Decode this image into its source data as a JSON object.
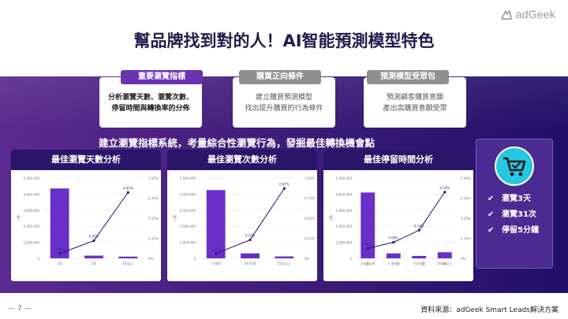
{
  "logo": {
    "text": "adGeek"
  },
  "title": "幫品牌找到對的人！AI智能預測模型特色",
  "cards": [
    {
      "tag": "重要瀏覽指標",
      "lines": [
        "分析瀏覽天數、瀏覽次數、",
        "停留時間與轉換率的分佈"
      ]
    },
    {
      "tag": "購買正向條件",
      "lines": [
        "建立購買預測模型",
        "找出提升購買的行為條件"
      ]
    },
    {
      "tag": "預測模型受眾包",
      "lines": [
        "預測顧客購買意願",
        "產出高購買意願受眾"
      ]
    }
  ],
  "subtitle": "建立瀏覽指標系統，考量綜合性瀏覽行為，發掘最佳轉換機會點",
  "chart_data": [
    {
      "type": "bar",
      "title": "最佳瀏覽天數分析",
      "ylabel": "人數",
      "categories": [
        "1天",
        "2天",
        "3天以上"
      ],
      "y_ticks": [
        "0",
        "1,000,000",
        "2,000,000",
        "3,000,000",
        "4,000,000",
        "5,000,000"
      ],
      "y2_ticks": [
        "0%",
        "0.25%",
        "0.50%",
        "0.75%",
        "1.00%"
      ],
      "ylim": [
        0,
        5000000
      ],
      "y2lim": [
        0,
        1.0
      ],
      "series": [
        {
          "values": [
            4350000,
            170000,
            110000
          ]
        },
        {
          "type": "line",
          "values": [
            0.06,
            0.22,
            0.82
          ],
          "labels": [
            "0.06%",
            "0.22%",
            "0.82%"
          ]
        }
      ]
    },
    {
      "type": "bar",
      "title": "最佳瀏覽次數分析",
      "ylabel": "人數",
      "categories": [
        "1-30次",
        "31-50次",
        "51次以上"
      ],
      "y_ticks": [
        "0",
        "1,000,000",
        "2,000,000",
        "3,000,000",
        "4,000,000",
        "5,000,000"
      ],
      "y2_ticks": [
        "0%",
        "0.25%",
        "0.50%",
        "0.75%",
        "1.00%"
      ],
      "ylim": [
        0,
        5000000
      ],
      "y2lim": [
        0,
        1.0
      ],
      "series": [
        {
          "values": [
            4250000,
            310000,
            120000
          ]
        },
        {
          "type": "line",
          "values": [
            0.06,
            0.23,
            0.87
          ],
          "labels": [
            "0.06%",
            "0.23%",
            "0.87%"
          ]
        }
      ]
    },
    {
      "type": "bar",
      "title": "最佳停留時間分析",
      "ylabel": "人數",
      "categories": [
        "1分鐘以內",
        "1-3分鐘",
        "3-5分鐘",
        "5分鐘以上"
      ],
      "y_ticks": [
        "0",
        "1,000,000",
        "2,000,000",
        "3,000,000",
        "4,000,000",
        "5,000,000"
      ],
      "y2_ticks": [
        "0%",
        "0.10%",
        "0.20%",
        "0.30%",
        "0.40%"
      ],
      "ylim": [
        0,
        5000000
      ],
      "y2lim": [
        0,
        0.4
      ],
      "series": [
        {
          "values": [
            4100000,
            310000,
            150000,
            380000
          ]
        },
        {
          "type": "line",
          "values": [
            0.05,
            0.08,
            0.14,
            0.33
          ],
          "labels": [
            "0.05%",
            "0.08%",
            "0.14%",
            "0.33%"
          ]
        }
      ]
    }
  ],
  "highlights": [
    "瀏覽3天",
    "瀏覽31次",
    "停留5分鐘"
  ],
  "footer": {
    "page": "—  7  —",
    "source": "資料來源：adGeek Smart Leads解決方案"
  },
  "colors": {
    "bar": "#6a2fc8",
    "line": "#2a1568",
    "band": "#3c1a78",
    "accent": "#28c7e0"
  }
}
